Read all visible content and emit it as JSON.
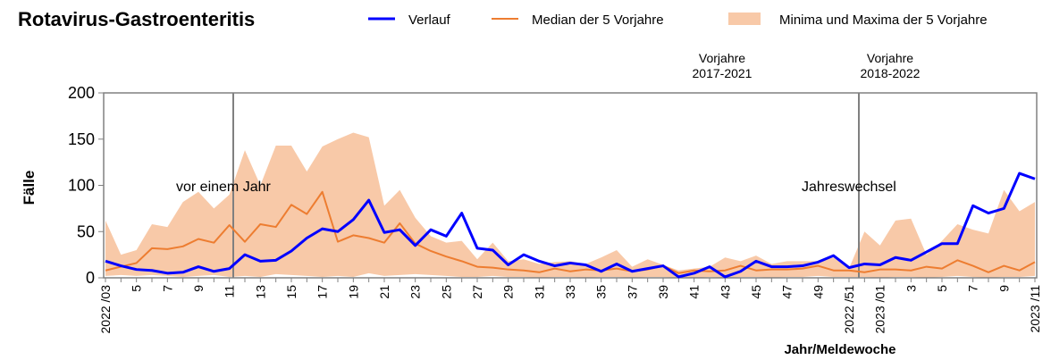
{
  "chart_data": {
    "type": "line",
    "title": "Rotavirus-Gastroenteritis",
    "ylabel": "Fälle",
    "xlabel": "Jahr/Meldewoche",
    "categories": [
      "2022 /03",
      null,
      "5",
      null,
      "7",
      null,
      "9",
      null,
      "11",
      null,
      "13",
      null,
      "15",
      null,
      "17",
      null,
      "19",
      null,
      "21",
      null,
      "23",
      null,
      "25",
      null,
      "27",
      null,
      "29",
      null,
      "31",
      null,
      "33",
      null,
      "35",
      null,
      "37",
      null,
      "39",
      null,
      "41",
      null,
      "43",
      null,
      "45",
      null,
      "47",
      null,
      "49",
      null,
      "2022 /51",
      null,
      "2023 /01",
      null,
      "3",
      null,
      "5",
      null,
      "7",
      null,
      "9",
      null,
      "2023 /11"
    ],
    "ylim": [
      0,
      200
    ],
    "yticks": [
      0,
      50,
      100,
      150,
      200
    ],
    "annotations": [
      [
        "vor einem Jahr"
      ],
      [
        "Jahreswechsel"
      ],
      [
        "Vorjahre",
        "2017-2021"
      ],
      [
        "Vorjahre",
        "2018-2022"
      ]
    ],
    "series": [
      {
        "name": "Minima und Maxima der 5 Vorjahre",
        "kind": "band",
        "color": "#f8c9a8",
        "upper": [
          62,
          25,
          30,
          58,
          55,
          82,
          93,
          75,
          90,
          138,
          100,
          143,
          143,
          115,
          142,
          150,
          157,
          152,
          78,
          95,
          65,
          45,
          38,
          40,
          20,
          38,
          18,
          20,
          15,
          17,
          18,
          15,
          22,
          30,
          12,
          20,
          14,
          8,
          10,
          12,
          22,
          18,
          24,
          15,
          18,
          18,
          18,
          22,
          10,
          50,
          35,
          62,
          64,
          25,
          40,
          58,
          52,
          48,
          95,
          72,
          82
        ],
        "lower": [
          2,
          3,
          2,
          3,
          2,
          1,
          2,
          3,
          1,
          2,
          1,
          4,
          3,
          2,
          1,
          2,
          1,
          5,
          2,
          3,
          4,
          3,
          2,
          1,
          1,
          2,
          1,
          1,
          0,
          1,
          1,
          0,
          1,
          1,
          0,
          1,
          1,
          0,
          0,
          1,
          0,
          1,
          1,
          0,
          1,
          1,
          2,
          1,
          1,
          1,
          0,
          1,
          1,
          0,
          1,
          2,
          1,
          0,
          1,
          1,
          2
        ]
      },
      {
        "name": "Median der 5 Vorjahre",
        "kind": "line",
        "color": "#ed7d31",
        "values": [
          8,
          12,
          16,
          32,
          31,
          34,
          42,
          38,
          57,
          39,
          58,
          55,
          79,
          69,
          93,
          39,
          46,
          43,
          38,
          59,
          37,
          29,
          23,
          18,
          12,
          11,
          9,
          8,
          6,
          10,
          7,
          9,
          8,
          10,
          7,
          9,
          13,
          5,
          8,
          7,
          8,
          13,
          8,
          9,
          9,
          10,
          13,
          8,
          8,
          6,
          9,
          9,
          8,
          12,
          10,
          19,
          13,
          6,
          13,
          8,
          17
        ]
      },
      {
        "name": "Verlauf",
        "kind": "line",
        "color": "#0000ff",
        "values": [
          18,
          13,
          9,
          8,
          5,
          6,
          12,
          7,
          10,
          25,
          18,
          19,
          29,
          43,
          53,
          50,
          63,
          84,
          49,
          52,
          35,
          52,
          45,
          70,
          32,
          30,
          14,
          25,
          18,
          13,
          16,
          14,
          7,
          15,
          7,
          10,
          13,
          1,
          5,
          12,
          1,
          7,
          18,
          12,
          12,
          13,
          17,
          24,
          11,
          15,
          14,
          22,
          19,
          28,
          37,
          37,
          78,
          70,
          75,
          113,
          107
        ]
      }
    ]
  }
}
